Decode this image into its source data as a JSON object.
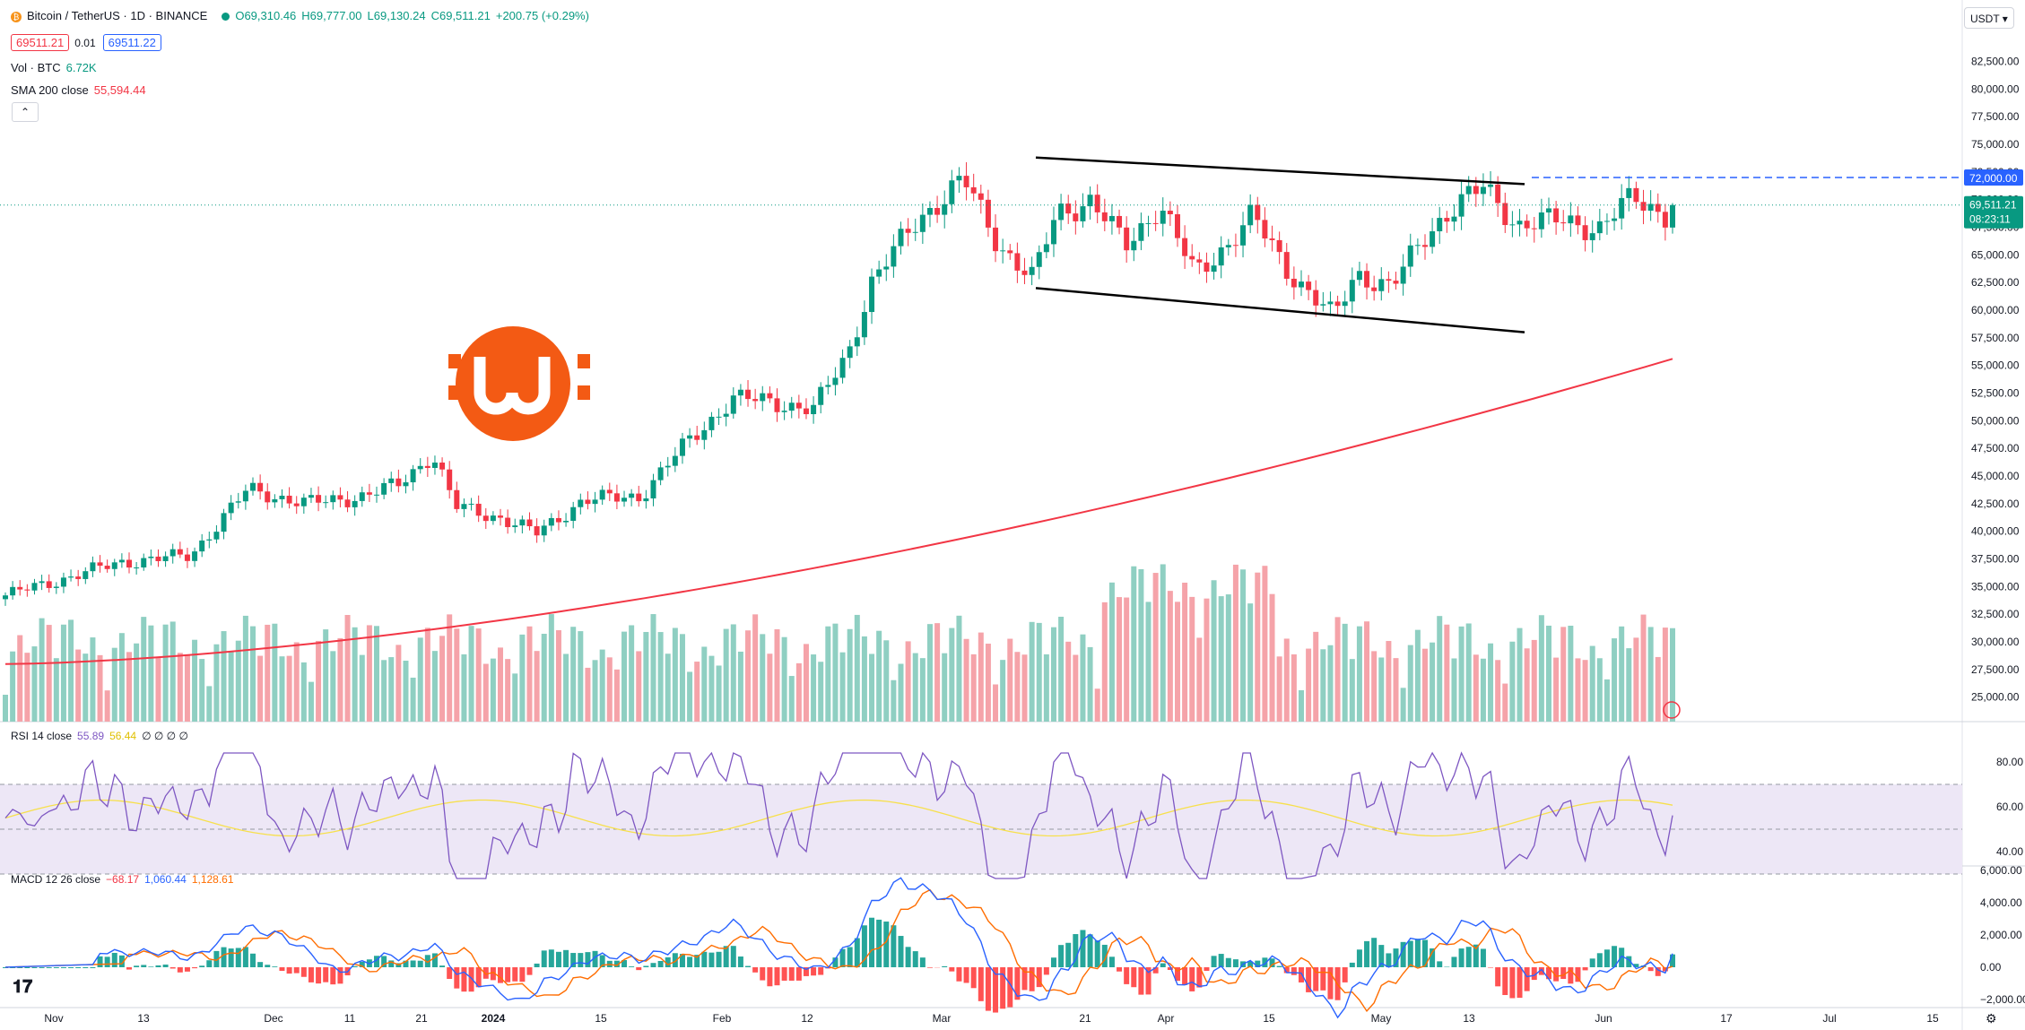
{
  "header": {
    "symbol_title": "Bitcoin / TetherUS · 1D · BINANCE",
    "symbol_icon": "bitcoin-icon",
    "open": "O69,310.46",
    "high": "H69,777.00",
    "low": "L69,130.24",
    "close": "C69,511.21",
    "change": "+200.75 (+0.29%)",
    "sell_price": "69511.21",
    "spread": "0.01",
    "buy_price": "69511.22",
    "indicator_volume_label": "Vol · BTC",
    "indicator_volume_value": "6.72K",
    "indicator_sma_label": "SMA 200 close",
    "indicator_sma_value": "55,594.44",
    "collapse_icon": "chevron-up-icon"
  },
  "currency": "USDT ▾",
  "colors": {
    "up": "#089981",
    "down": "#f23645",
    "sma": "#f23645",
    "rsi": "#7e57c2",
    "rsi_ma": "#f7e04b",
    "macd": "#2962ff",
    "signal": "#ff6d00",
    "dashed": "#2962ff"
  },
  "price_axis": [
    "82,500.00",
    "80,000.00",
    "77,500.00",
    "75,000.00",
    "72,500.00",
    "70,000.00",
    "67,500.00",
    "65,000.00",
    "62,500.00",
    "60,000.00",
    "57,500.00",
    "55,000.00",
    "52,500.00",
    "50,000.00",
    "47,500.00",
    "45,000.00",
    "42,500.00",
    "40,000.00",
    "37,500.00",
    "35,000.00",
    "32,500.00",
    "30,000.00",
    "27,500.00",
    "25,000.00"
  ],
  "price_labels": {
    "level": "72,000.00",
    "last": "69,511.21",
    "countdown": "08:23:11"
  },
  "rsi": {
    "label": "RSI 14 close",
    "value": "55.89",
    "ma_value": "56.44",
    "extra": "∅ ∅ ∅ ∅",
    "axis": [
      "80.00",
      "60.00",
      "40.00"
    ]
  },
  "macd": {
    "label": "MACD 12 26 close",
    "hist": "−68.17",
    "macd": "1,060.44",
    "signal": "1,128.61",
    "axis": [
      "6,000.00",
      "4,000.00",
      "2,000.00",
      "0.00",
      "−2,000.00"
    ]
  },
  "time_axis": [
    "Nov",
    "13",
    "Dec",
    "11",
    "21",
    "2024",
    "15",
    "Feb",
    "12",
    "Mar",
    "21",
    "Apr",
    "15",
    "May",
    "13",
    "Jun",
    "17",
    "Jul",
    "15"
  ],
  "logo_icon": "tradingview-logo",
  "watermark_icon": "orange-coin-logo",
  "gear_icon": "settings-icon",
  "chart_data": {
    "type": "candlestick",
    "symbol": "BTCUSDT",
    "interval": "1D",
    "series": [
      {
        "name": "SMA 200 close",
        "start": 28000,
        "end": 55594.44
      },
      {
        "name": "RSI 14 close",
        "last": 55.89
      },
      {
        "name": "MACD 12 26 close",
        "last": 1060.44
      }
    ],
    "last_close": 69511.21,
    "resistance_level": 72000,
    "channel_upper": [
      73800,
      71400
    ],
    "channel_lower": [
      62000,
      58000
    ],
    "ylim": [
      24000,
      84000
    ]
  }
}
